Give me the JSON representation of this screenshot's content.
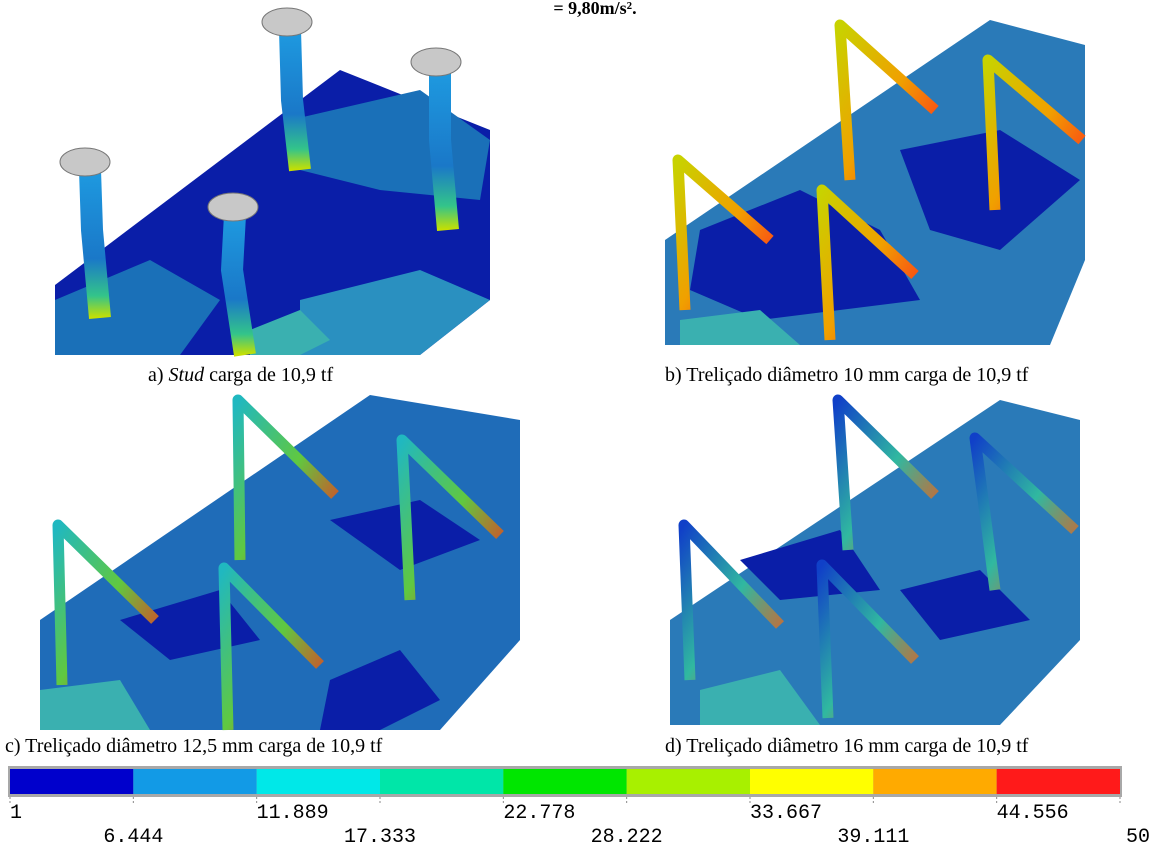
{
  "header": {
    "text": "= 9,80m/s²."
  },
  "panels": [
    {
      "caption": {
        "prefix": "a) ",
        "italic": "Stud",
        "rest": " carga de 10,9 tf"
      }
    },
    {
      "caption": {
        "prefix": "b) Treliçado diâmetro 10 mm carga de 10,9 tf"
      }
    },
    {
      "caption": {
        "prefix": "c) Treliçado diâmetro 12,5 mm carga de 10,9 tf"
      }
    },
    {
      "caption": {
        "prefix": "d) Treliçado diâmetro 16 mm carga de 10,9 tf"
      }
    }
  ],
  "legend": {
    "colors": [
      "#0000cc",
      "#129ae6",
      "#00e8e8",
      "#00e6a8",
      "#00e600",
      "#a8f000",
      "#ffff00",
      "#ffaa00",
      "#ff1a1a"
    ],
    "labels": [
      "1",
      "6.444",
      "11.889",
      "17.333",
      "22.778",
      "28.222",
      "33.667",
      "39.111",
      "44.556",
      "50"
    ]
  }
}
